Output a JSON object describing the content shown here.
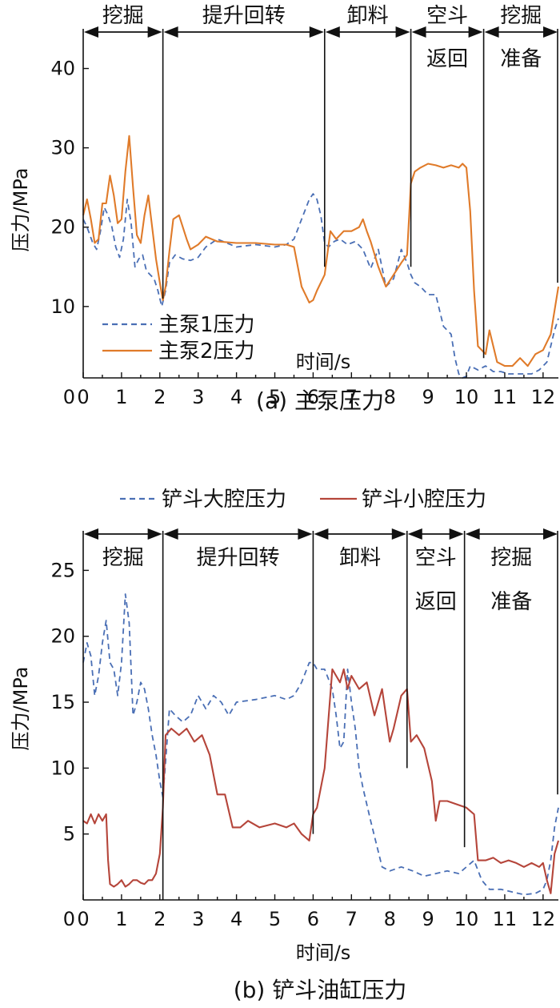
{
  "chart_data": [
    {
      "id": "a",
      "type": "line",
      "caption": "(a)  主泵压力",
      "xlabel": "时间/s",
      "ylabel": "压力/MPa",
      "xlim": [
        0,
        12.4
      ],
      "ylim": [
        1,
        45
      ],
      "xticks": [
        0,
        1,
        2,
        3,
        4,
        5,
        6,
        7,
        8,
        9,
        10,
        11,
        12
      ],
      "yticks": [
        10,
        20,
        30,
        40
      ],
      "legend_position": "lower-left",
      "phases": [
        {
          "start": 0,
          "end": 2.08,
          "line1": "挖掘",
          "line2": ""
        },
        {
          "start": 2.08,
          "end": 6.3,
          "line1": "提升回转",
          "line2": ""
        },
        {
          "start": 6.3,
          "end": 8.55,
          "line1": "卸料",
          "line2": ""
        },
        {
          "start": 8.55,
          "end": 10.45,
          "line1": "空斗",
          "line2": "返回"
        },
        {
          "start": 10.45,
          "end": 12.4,
          "line1": "挖掘",
          "line2": "准备"
        }
      ],
      "dividers": [
        {
          "x": 2.08,
          "y_bottom": 11
        },
        {
          "x": 6.3,
          "y_bottom": 15
        },
        {
          "x": 8.55,
          "y_bottom": 15
        },
        {
          "x": 10.45,
          "y_bottom": 3.5
        },
        {
          "x": 12.4,
          "y_bottom": 13
        }
      ],
      "series": [
        {
          "name": "主泵1压力",
          "color": "#4a6fb5",
          "dash": "dashed",
          "x": [
            0,
            0.1,
            0.25,
            0.35,
            0.45,
            0.55,
            0.65,
            0.75,
            0.85,
            0.95,
            1.05,
            1.15,
            1.25,
            1.35,
            1.45,
            1.55,
            1.65,
            1.75,
            1.85,
            1.95,
            2.05,
            2.15,
            2.25,
            2.4,
            2.6,
            2.8,
            3.0,
            3.2,
            3.5,
            4.0,
            4.5,
            5.0,
            5.3,
            5.5,
            5.7,
            5.9,
            6.0,
            6.1,
            6.2,
            6.3,
            6.4,
            6.55,
            6.7,
            6.9,
            7.1,
            7.3,
            7.5,
            7.7,
            7.9,
            8.1,
            8.3,
            8.45,
            8.55,
            8.65,
            8.8,
            8.9,
            9.0,
            9.2,
            9.4,
            9.5,
            9.6,
            9.7,
            9.8,
            9.9,
            10.0,
            10.1,
            10.3,
            10.5,
            10.7,
            10.9,
            11.1,
            11.3,
            11.5,
            11.7,
            11.9,
            12.1,
            12.2,
            12.3,
            12.4
          ],
          "y": [
            21,
            20,
            18,
            17.2,
            19.5,
            22.5,
            21.5,
            20,
            17.5,
            16.2,
            18.5,
            23.5,
            20.5,
            15,
            16,
            16.5,
            14.5,
            14,
            13.5,
            12,
            10,
            12,
            15.5,
            16.5,
            16,
            15.8,
            16.2,
            17.5,
            18.5,
            17.5,
            17.8,
            17.5,
            17.8,
            18.5,
            21,
            23.5,
            24.2,
            23.5,
            21.5,
            18,
            17.5,
            18.2,
            18.5,
            17.8,
            18.2,
            17.2,
            14.8,
            17.2,
            12.5,
            13.5,
            17.2,
            15.5,
            14,
            13,
            12.5,
            12,
            11.5,
            11.5,
            7.5,
            7,
            6.5,
            3.5,
            1.5,
            1,
            1.2,
            2.5,
            2,
            2.5,
            1.8,
            1.8,
            1.5,
            1.5,
            1.5,
            1.5,
            2,
            3,
            5,
            7,
            8.5
          ]
        },
        {
          "name": "主泵2压力",
          "color": "#e07b2a",
          "dash": "solid",
          "x": [
            0,
            0.1,
            0.2,
            0.3,
            0.4,
            0.5,
            0.6,
            0.7,
            0.8,
            0.9,
            1.0,
            1.1,
            1.2,
            1.3,
            1.4,
            1.5,
            1.6,
            1.7,
            1.8,
            1.9,
            2.0,
            2.08,
            2.15,
            2.25,
            2.35,
            2.5,
            2.7,
            2.8,
            3.0,
            3.2,
            3.5,
            4.0,
            4.5,
            5.0,
            5.3,
            5.5,
            5.6,
            5.7,
            5.9,
            6.0,
            6.1,
            6.2,
            6.3,
            6.45,
            6.6,
            6.8,
            7.0,
            7.2,
            7.3,
            7.4,
            7.5,
            7.7,
            7.9,
            8.1,
            8.3,
            8.45,
            8.55,
            8.65,
            8.8,
            9.0,
            9.2,
            9.4,
            9.6,
            9.8,
            9.9,
            10.0,
            10.1,
            10.2,
            10.3,
            10.5,
            10.6,
            10.8,
            11.0,
            11.2,
            11.4,
            11.6,
            11.8,
            12.0,
            12.2,
            12.4
          ],
          "y": [
            21.5,
            23.5,
            21,
            18,
            18.5,
            23,
            23,
            26.5,
            24,
            20.5,
            21,
            27,
            31.5,
            25,
            19,
            18,
            21.5,
            24,
            20,
            16,
            13,
            10.8,
            12.5,
            17,
            21,
            21.5,
            18.5,
            17.2,
            17.8,
            18.8,
            18.2,
            18,
            18,
            17.8,
            17.8,
            17.5,
            15,
            12.5,
            10.5,
            10.8,
            12,
            13,
            14,
            19.5,
            18.5,
            19.5,
            19.5,
            20,
            21,
            19.5,
            18.2,
            15,
            12.5,
            14,
            15.5,
            16.5,
            25.5,
            27,
            27.5,
            28,
            27.8,
            27.5,
            27.8,
            27.5,
            28,
            27.5,
            22,
            12,
            5,
            4,
            7,
            3,
            2.5,
            2.5,
            3.5,
            2.5,
            4,
            4.5,
            6.5,
            12.5
          ]
        }
      ]
    },
    {
      "id": "b",
      "type": "line",
      "caption": "(b)  铲斗油缸压力",
      "xlabel": "时间/s",
      "ylabel": "压力/MPa",
      "xlim": [
        0,
        12.4
      ],
      "ylim": [
        0,
        28
      ],
      "xticks": [
        0,
        1,
        2,
        3,
        4,
        5,
        6,
        7,
        8,
        9,
        10,
        11,
        12
      ],
      "yticks": [
        5,
        10,
        15,
        20,
        25
      ],
      "legend_position": "top",
      "phases": [
        {
          "start": 0,
          "end": 2.08,
          "line1": "挖掘",
          "line2": ""
        },
        {
          "start": 2.08,
          "end": 6.0,
          "line1": "提升回转",
          "line2": ""
        },
        {
          "start": 6.0,
          "end": 8.45,
          "line1": "卸料",
          "line2": ""
        },
        {
          "start": 8.45,
          "end": 9.95,
          "line1": "空斗",
          "line2": "返回"
        },
        {
          "start": 9.95,
          "end": 12.4,
          "line1": "挖掘",
          "line2": "准备"
        }
      ],
      "dividers": [
        {
          "x": 2.08,
          "y_bottom": 0
        },
        {
          "x": 6.0,
          "y_bottom": 5
        },
        {
          "x": 8.45,
          "y_bottom": 10
        },
        {
          "x": 9.95,
          "y_bottom": 4
        },
        {
          "x": 12.4,
          "y_bottom": 8
        }
      ],
      "series": [
        {
          "name": "铲斗大腔压力",
          "color": "#4a6fb5",
          "dash": "dashed",
          "x": [
            0,
            0.1,
            0.2,
            0.3,
            0.4,
            0.5,
            0.6,
            0.7,
            0.8,
            0.9,
            1.0,
            1.1,
            1.2,
            1.3,
            1.4,
            1.5,
            1.6,
            1.7,
            1.8,
            1.9,
            2.0,
            2.08,
            2.15,
            2.25,
            2.4,
            2.6,
            2.8,
            3.0,
            3.2,
            3.4,
            3.6,
            3.8,
            4.0,
            4.5,
            5.0,
            5.3,
            5.5,
            5.7,
            5.9,
            6.0,
            6.1,
            6.3,
            6.5,
            6.6,
            6.7,
            6.8,
            6.9,
            7.0,
            7.1,
            7.2,
            7.3,
            7.5,
            7.8,
            8.0,
            8.3,
            8.6,
            8.9,
            9.2,
            9.5,
            9.8,
            10.0,
            10.2,
            10.4,
            10.6,
            10.9,
            11.2,
            11.5,
            11.8,
            12.0,
            12.1,
            12.2,
            12.3,
            12.4
          ],
          "y": [
            18,
            19.5,
            18.5,
            15.5,
            17,
            19.5,
            21.2,
            18,
            17.5,
            15.5,
            18,
            23.2,
            21,
            14,
            15,
            16.5,
            16,
            14.5,
            12.5,
            11,
            9,
            7.8,
            10.5,
            14.5,
            14,
            13.5,
            14,
            15.5,
            14.5,
            15.5,
            15,
            14,
            15,
            15.2,
            15.5,
            15.2,
            15.5,
            16.5,
            18,
            18,
            17.5,
            17.5,
            16,
            14,
            11.5,
            12,
            17.5,
            15,
            13,
            10,
            8.5,
            6,
            2.5,
            2.2,
            2.5,
            2.2,
            1.8,
            2,
            2.2,
            2,
            2.5,
            3,
            1.5,
            0.8,
            0.8,
            0.6,
            0.4,
            0.5,
            0.8,
            1.5,
            3,
            5.5,
            7
          ]
        },
        {
          "name": "铲斗小腔压力",
          "color": "#b5453a",
          "dash": "solid",
          "x": [
            0,
            0.1,
            0.2,
            0.3,
            0.4,
            0.5,
            0.6,
            0.65,
            0.7,
            0.8,
            0.9,
            1.0,
            1.1,
            1.2,
            1.3,
            1.4,
            1.5,
            1.6,
            1.7,
            1.8,
            1.9,
            2.0,
            2.08,
            2.15,
            2.3,
            2.5,
            2.7,
            2.9,
            3.1,
            3.3,
            3.5,
            3.7,
            3.9,
            4.1,
            4.3,
            4.6,
            5.0,
            5.3,
            5.5,
            5.7,
            5.9,
            6.0,
            6.1,
            6.3,
            6.5,
            6.6,
            6.7,
            6.8,
            6.9,
            7.0,
            7.2,
            7.4,
            7.6,
            7.8,
            8.0,
            8.1,
            8.3,
            8.45,
            8.55,
            8.7,
            8.9,
            9.1,
            9.2,
            9.3,
            9.5,
            9.8,
            10.0,
            10.2,
            10.3,
            10.5,
            10.7,
            10.9,
            11.1,
            11.3,
            11.5,
            11.7,
            11.9,
            12.0,
            12.1,
            12.2,
            12.3,
            12.4
          ],
          "y": [
            6,
            5.8,
            6.5,
            5.8,
            6.5,
            6,
            6.5,
            3,
            1.2,
            1,
            1.2,
            1.5,
            1,
            1.2,
            1.5,
            1.5,
            1.3,
            1.2,
            1.5,
            1.5,
            2,
            3.5,
            7,
            12.5,
            13,
            12.5,
            13,
            12,
            12.5,
            11,
            8,
            8,
            5.5,
            5.5,
            6,
            5.5,
            5.8,
            5.5,
            5.8,
            5,
            4.5,
            6.5,
            7,
            10,
            17.5,
            17,
            16.5,
            17.5,
            16,
            17,
            16,
            16.5,
            14,
            16,
            12,
            13,
            15.5,
            16,
            12,
            12.5,
            11.5,
            9,
            6,
            7.5,
            7.5,
            7.2,
            7,
            6.5,
            3,
            3,
            3.2,
            2.8,
            3,
            2.8,
            2.5,
            2.8,
            2.5,
            2.8,
            1.5,
            0.5,
            3.5,
            4.5
          ]
        }
      ]
    }
  ]
}
